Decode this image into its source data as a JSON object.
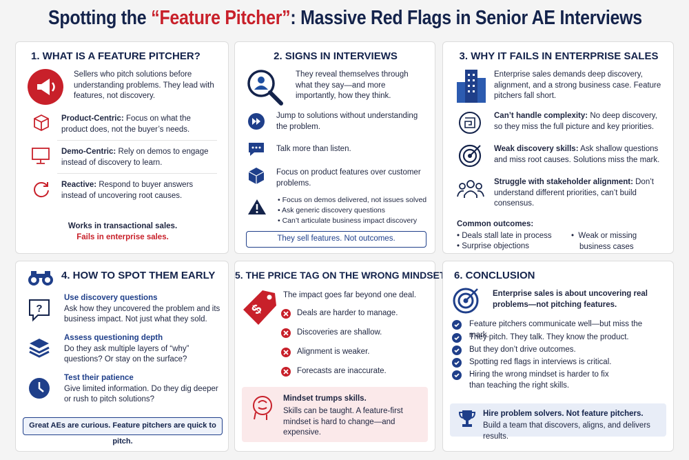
{
  "title": {
    "lead": "Spotting the",
    "highlight": "“Feature Pitcher”",
    "rest": ": Massive Red Flags in Senior AE Interviews"
  },
  "panels": [
    {
      "heading": "1. WHAT IS A FEATURE PITCHER?",
      "intro": "Sellers who pitch solutions before understanding problems. They lead with features, not discovery.",
      "items": [
        {
          "label": "Product-Centric:",
          "text": "Focus on what the product does, not the buyer’s needs."
        },
        {
          "label": "Demo-Centric:",
          "text": "Rely on demos to engage instead of discovery to learn."
        },
        {
          "label": "Reactive:",
          "text": "Respond to buyer answers instead of uncovering root causes."
        }
      ],
      "footer": [
        "Works in transactional sales.",
        "Fails in enterprise sales."
      ]
    },
    {
      "heading": "2. SIGNS IN INTERVIEWS",
      "intro": "They reveal themselves through what they say—and more importantly, how they think.",
      "items": [
        "Jump to solutions without understanding the problem.",
        "Talk more than listen.",
        "Focus on product features over customer problems."
      ],
      "bullets": [
        "Focus on demos delivered, not issues solved",
        "Ask generic discovery questions",
        "Can’t articulate business impact discovery"
      ],
      "callout": "They sell features. Not outcomes."
    },
    {
      "heading": "3. WHY IT FAILS IN ENTERPRISE SALES",
      "intro": "Enterprise sales demands deep discovery, alignment, and a strong business case. Feature pitchers fall short.",
      "items": [
        {
          "label": "Can’t handle complexity:",
          "text": "No deep discovery, so they miss the full picture and key priorities."
        },
        {
          "label": "Weak discovery skills:",
          "text": "Ask shallow questions and miss root causes. Solutions miss the mark."
        },
        {
          "label": "Struggle with stakeholder alignment:",
          "text": "Don’t understand different priorities, can’t build consensus."
        }
      ],
      "outcomes_heading": "Common outcomes:",
      "outcomes": [
        "Deals stall late in process",
        "Surprise objections",
        "Weak or missing business cases"
      ]
    },
    {
      "heading": "4. HOW TO SPOT THEM EARLY",
      "items": [
        {
          "label": "Use discovery questions",
          "text": "Ask how they uncovered the problem and its business impact. Not just what they sold."
        },
        {
          "label": "Assess questioning depth",
          "text": "Do they ask multiple layers of “why” questions? Or stay on the surface?"
        },
        {
          "label": "Test their patience",
          "text": "Give limited information. Do they dig deeper or rush to pitch solutions?"
        }
      ],
      "callout": "Great AEs are curious. Feature pitchers are quick to pitch."
    },
    {
      "heading": "5. THE PRICE TAG ON THE WRONG MINDSET",
      "intro": "The impact goes far beyond one deal.",
      "items": [
        "Deals are harder to manage.",
        "Discoveries are shallow.",
        "Alignment is weaker.",
        "Forecasts are inaccurate."
      ],
      "callout": {
        "label": "Mindset trumps skills.",
        "text": "Skills can be taught. A feature-first mindset is hard to change—and expensive."
      }
    },
    {
      "heading": "6. CONCLUSION",
      "intro": "Enterprise sales is about uncovering real problems—not pitching features.",
      "items": [
        "Feature pitchers communicate well—but miss the mark.",
        "They pitch. They talk. They know the product.",
        "But they don’t drive outcomes.",
        "Spotting red flags in interviews is critical.",
        "Hiring the wrong mindset is harder to fix than teaching the right skills."
      ],
      "callout": {
        "label": "Hire problem solvers. Not feature pitchers.",
        "text": "Build a team that discovers, aligns, and delivers results."
      }
    }
  ]
}
